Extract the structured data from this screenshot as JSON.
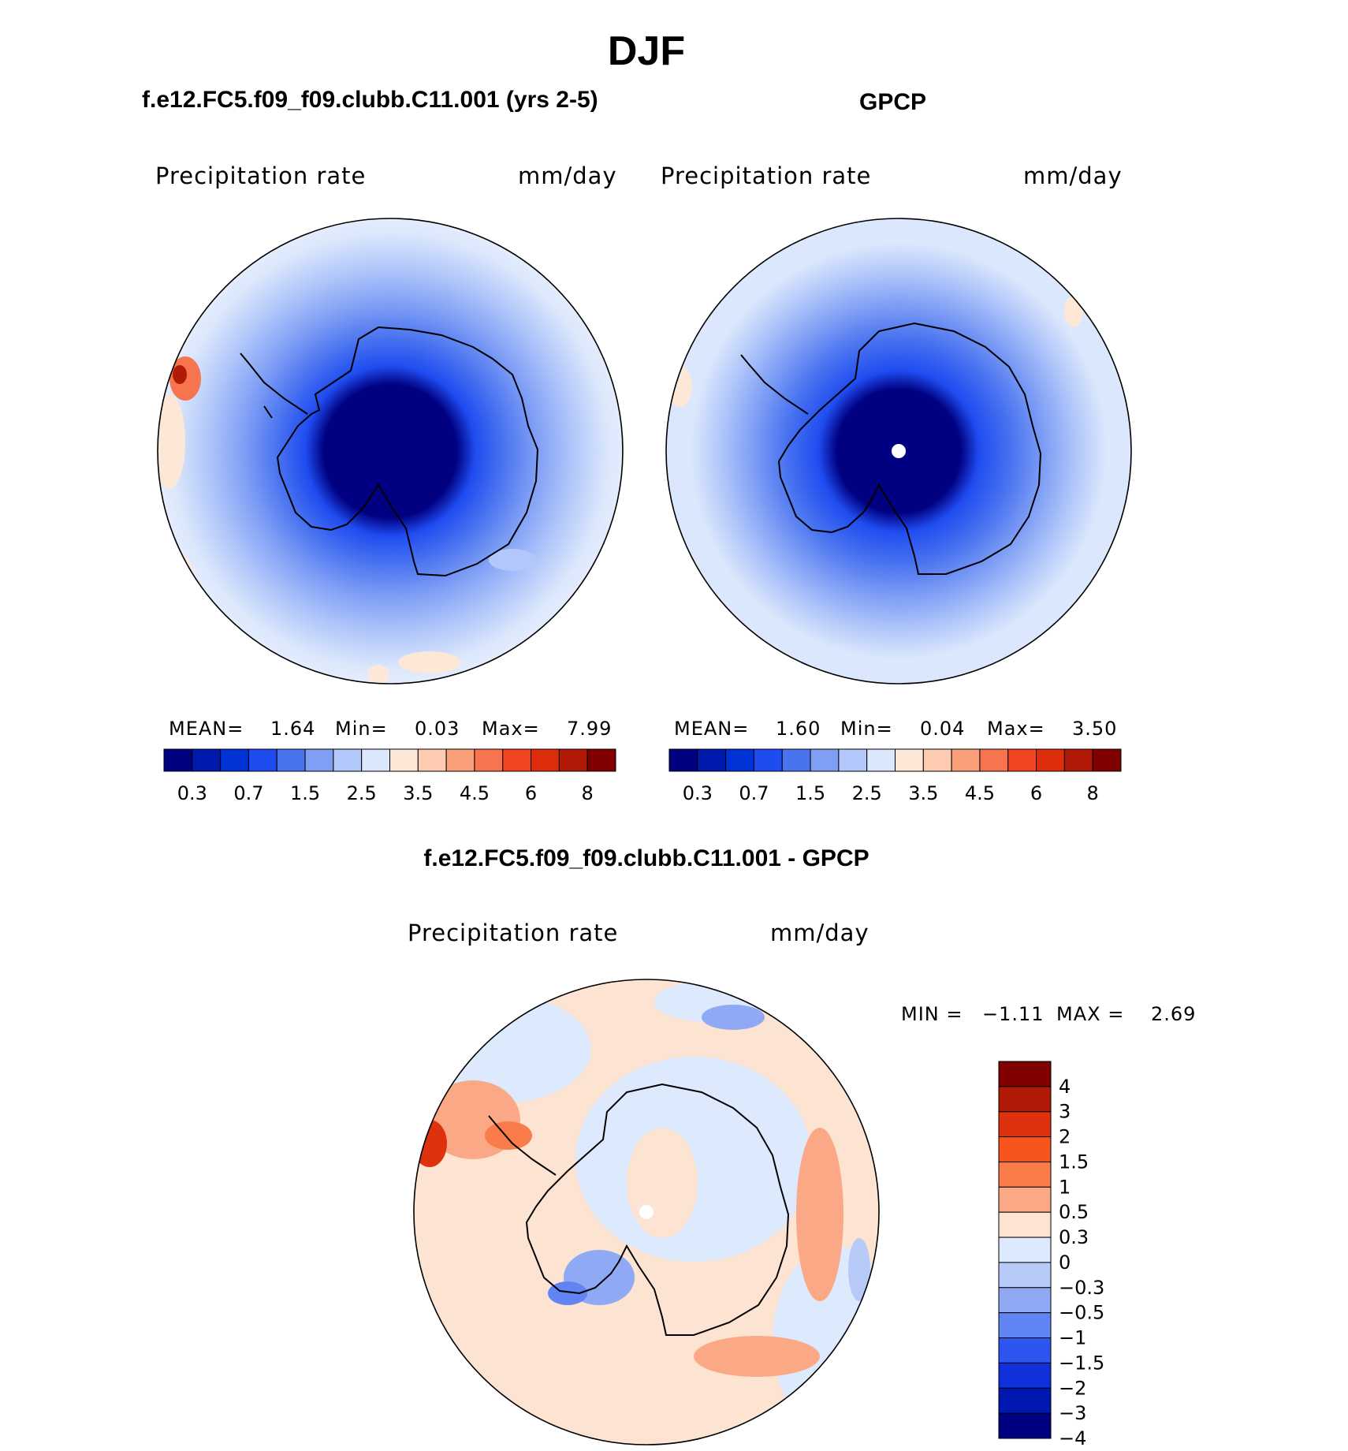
{
  "page": {
    "title": "DJF"
  },
  "panels": [
    {
      "id": "model",
      "title": "f.e12.FC5.f09_f09.clubb.C11.001 (yrs 2-5)",
      "variable": "Precipitation  rate",
      "units": "mm/day",
      "stats": {
        "mean_label": "MEAN=",
        "mean": "1.64",
        "min_label": "Min=",
        "min": "0.03",
        "max_label": "Max=",
        "max": "7.99"
      }
    },
    {
      "id": "obs",
      "title": "GPCP",
      "variable": "Precipitation  rate",
      "units": "mm/day",
      "stats": {
        "mean_label": "MEAN=",
        "mean": "1.60",
        "min_label": "Min=",
        "min": "0.04",
        "max_label": "Max=",
        "max": "3.50"
      }
    },
    {
      "id": "diff",
      "title": "f.e12.FC5.f09_f09.clubb.C11.001 - GPCP",
      "variable": "Precipitation  rate",
      "units": "mm/day",
      "stats": {
        "min_label": "MIN =",
        "min": "−1.11",
        "max_label": "MAX =",
        "max": "2.69"
      }
    }
  ],
  "colorbar_abs": {
    "colors": [
      "#000080",
      "#0019ad",
      "#0033d6",
      "#1f4cf0",
      "#4a73f0",
      "#7f9ff5",
      "#b3c8fa",
      "#dbe7fc",
      "#fde8d7",
      "#fccbb0",
      "#f99f7a",
      "#f7744f",
      "#f44522",
      "#de2d0d",
      "#b01a06",
      "#800000"
    ],
    "tick_labels": [
      "0.3",
      "0.7",
      "1.5",
      "2.5",
      "3.5",
      "4.5",
      "6",
      "8"
    ]
  },
  "colorbar_diff": {
    "colors": [
      "#800000",
      "#b01a06",
      "#de320e",
      "#f7541e",
      "#f97c4a",
      "#fba886",
      "#fde4d2",
      "#dde9fc",
      "#b8cbf8",
      "#8fa9f5",
      "#6085f2",
      "#2d56f0",
      "#1030dc",
      "#0018b0",
      "#000080"
    ],
    "tick_labels": [
      "4",
      "3",
      "2",
      "1.5",
      "1",
      "0.5",
      "0.3",
      "0",
      "−0.3",
      "−0.5",
      "−1",
      "−1.5",
      "−2",
      "−3",
      "−4"
    ]
  }
}
